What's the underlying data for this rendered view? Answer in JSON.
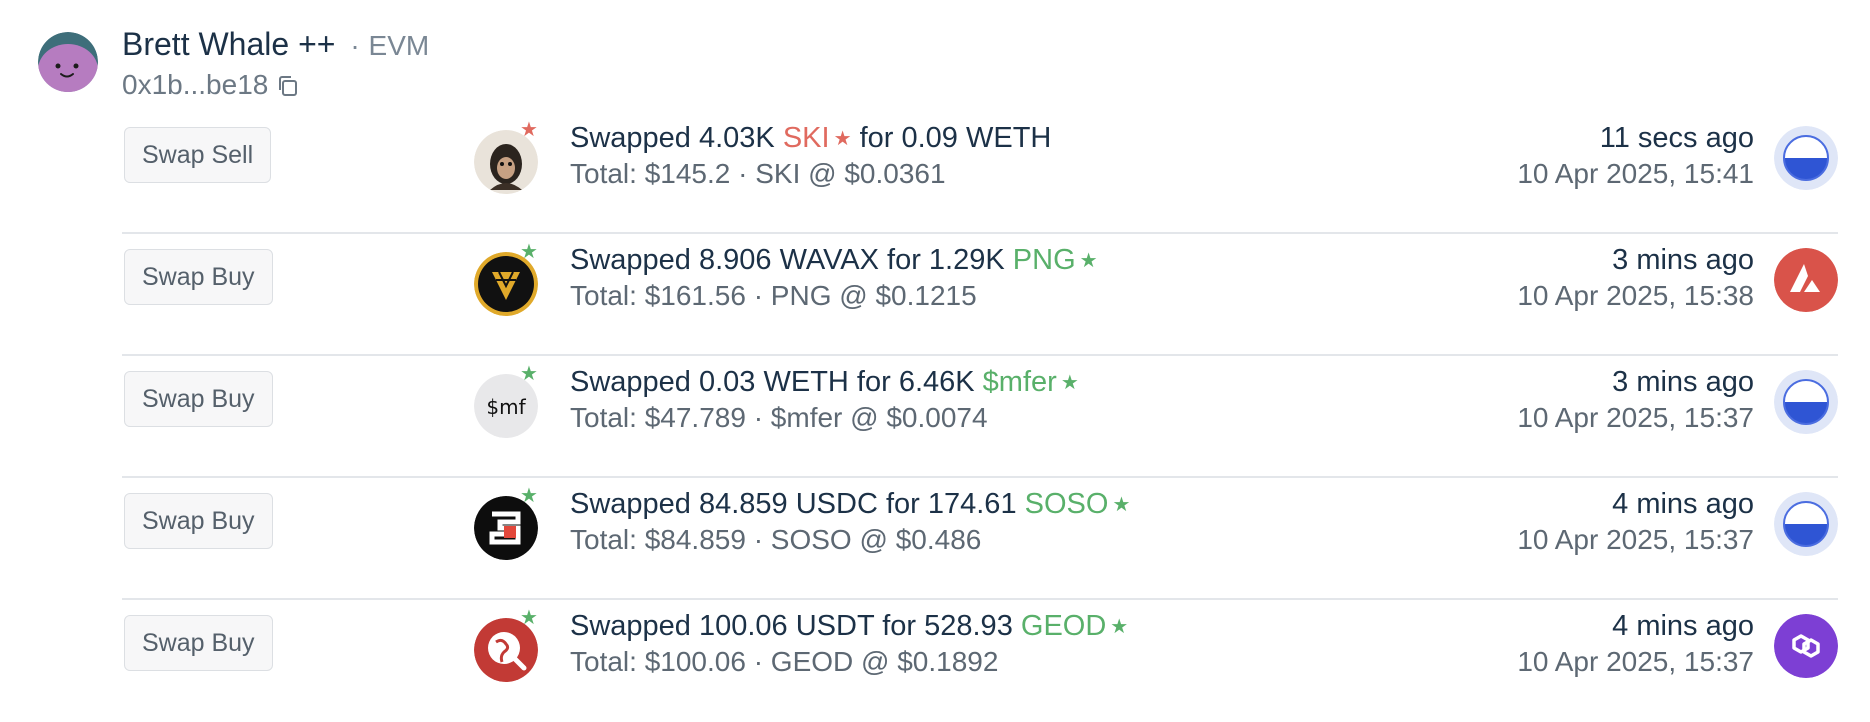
{
  "wallet": {
    "name": "Brett Whale ++",
    "separator": "·",
    "chain": "EVM",
    "address": "0x1b...be18",
    "avatar_color": "#b67cc0",
    "avatar_accent": "#3e6e7a"
  },
  "colors": {
    "sell": "#e06a5f",
    "buy": "#59b06a",
    "text": "#1c3147",
    "muted": "#5d6873"
  },
  "transactions": [
    {
      "type": "Swap Sell",
      "side": "sell",
      "desc_prefix": "Swapped 4.03K",
      "desc_symbol": "SKI",
      "desc_star": "★",
      "desc_suffix": "for 0.09 WETH",
      "total": "Total: $145.2 · SKI @ $0.0361",
      "time_ago": "11 secs ago",
      "date": "10 Apr 2025, 15:41",
      "token_icon": "ski-monkey-icon",
      "chain_icon": "base-chain-icon",
      "star": "★"
    },
    {
      "type": "Swap Buy",
      "side": "buy",
      "desc_prefix": "Swapped 8.906 WAVAX for 1.29K",
      "desc_symbol": "PNG",
      "desc_star": "★",
      "desc_suffix": "",
      "total": "Total: $161.56 · PNG @ $0.1215",
      "time_ago": "3 mins ago",
      "date": "10 Apr 2025, 15:38",
      "token_icon": "png-pangolin-icon",
      "chain_icon": "avalanche-chain-icon",
      "star": "★"
    },
    {
      "type": "Swap Buy",
      "side": "buy",
      "desc_prefix": "Swapped 0.03 WETH for 6.46K",
      "desc_symbol": "$mfer",
      "desc_star": "★",
      "desc_suffix": "",
      "total": "Total: $47.789 · $mfer @ $0.0074",
      "time_ago": "3 mins ago",
      "date": "10 Apr 2025, 15:37",
      "token_icon": "mfer-icon",
      "token_icon_text": "$mf",
      "chain_icon": "base-chain-icon",
      "star": "★"
    },
    {
      "type": "Swap Buy",
      "side": "buy",
      "desc_prefix": "Swapped 84.859 USDC for 174.61",
      "desc_symbol": "SOSO",
      "desc_star": "★",
      "desc_suffix": "",
      "total": "Total: $84.859 · SOSO @ $0.486",
      "time_ago": "4 mins ago",
      "date": "10 Apr 2025, 15:37",
      "token_icon": "soso-icon",
      "chain_icon": "base-chain-icon",
      "star": "★"
    },
    {
      "type": "Swap Buy",
      "side": "buy",
      "desc_prefix": "Swapped 100.06 USDT for 528.93",
      "desc_symbol": "GEOD",
      "desc_star": "★",
      "desc_suffix": "",
      "total": "Total: $100.06 · GEOD @ $0.1892",
      "time_ago": "4 mins ago",
      "date": "10 Apr 2025, 15:37",
      "token_icon": "geod-globe-icon",
      "chain_icon": "polygon-chain-icon",
      "star": "★"
    }
  ]
}
